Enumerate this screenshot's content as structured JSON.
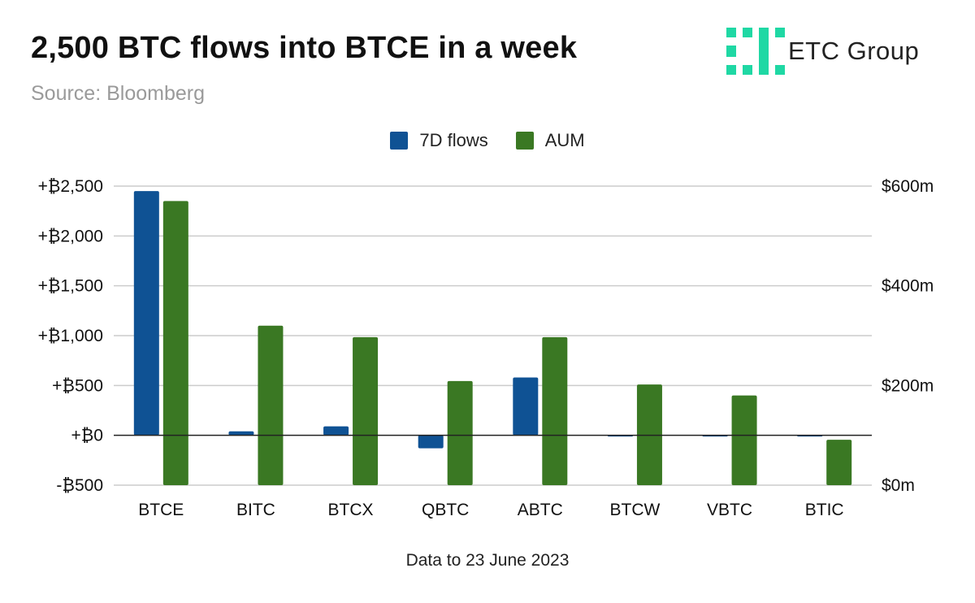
{
  "title": "2,500 BTC flows into BTCE in a week",
  "subtitle": "Source: Bloomberg",
  "brand": {
    "name": "ETC Group",
    "color": "#1fd8a4"
  },
  "footnote": "Data to 23 June 2023",
  "colors": {
    "flows": "#0f5294",
    "aum": "#3a7823",
    "grid": "#cccccc",
    "zero": "#222222"
  },
  "chart_data": {
    "type": "bar",
    "categories": [
      "BTCE",
      "BITC",
      "BTCX",
      "QBTC",
      "ABTC",
      "BTCW",
      "VBTC",
      "BTIC"
    ],
    "series": [
      {
        "name": "7D flows",
        "axis": "left",
        "values": [
          2450,
          40,
          90,
          -130,
          580,
          -8,
          -8,
          -8
        ]
      },
      {
        "name": "AUM",
        "axis": "right",
        "values": [
          570,
          320,
          297,
          209,
          297,
          202,
          180,
          91
        ]
      }
    ],
    "left_axis": {
      "min": -500,
      "max": 2500,
      "ticks": [
        -500,
        0,
        500,
        1000,
        1500,
        2000,
        2500
      ],
      "tick_labels": [
        "-₿500",
        "+₿0",
        "+₿500",
        "+₿1,000",
        "+₿1,500",
        "+₿2,000",
        "+₿2,500"
      ]
    },
    "right_axis": {
      "min": 0,
      "max": 600,
      "ticks": [
        0,
        200,
        400,
        600
      ],
      "tick_labels": [
        "$0m",
        "$200m",
        "$400m",
        "$600m"
      ]
    },
    "grid": true,
    "legend": "top-center"
  }
}
